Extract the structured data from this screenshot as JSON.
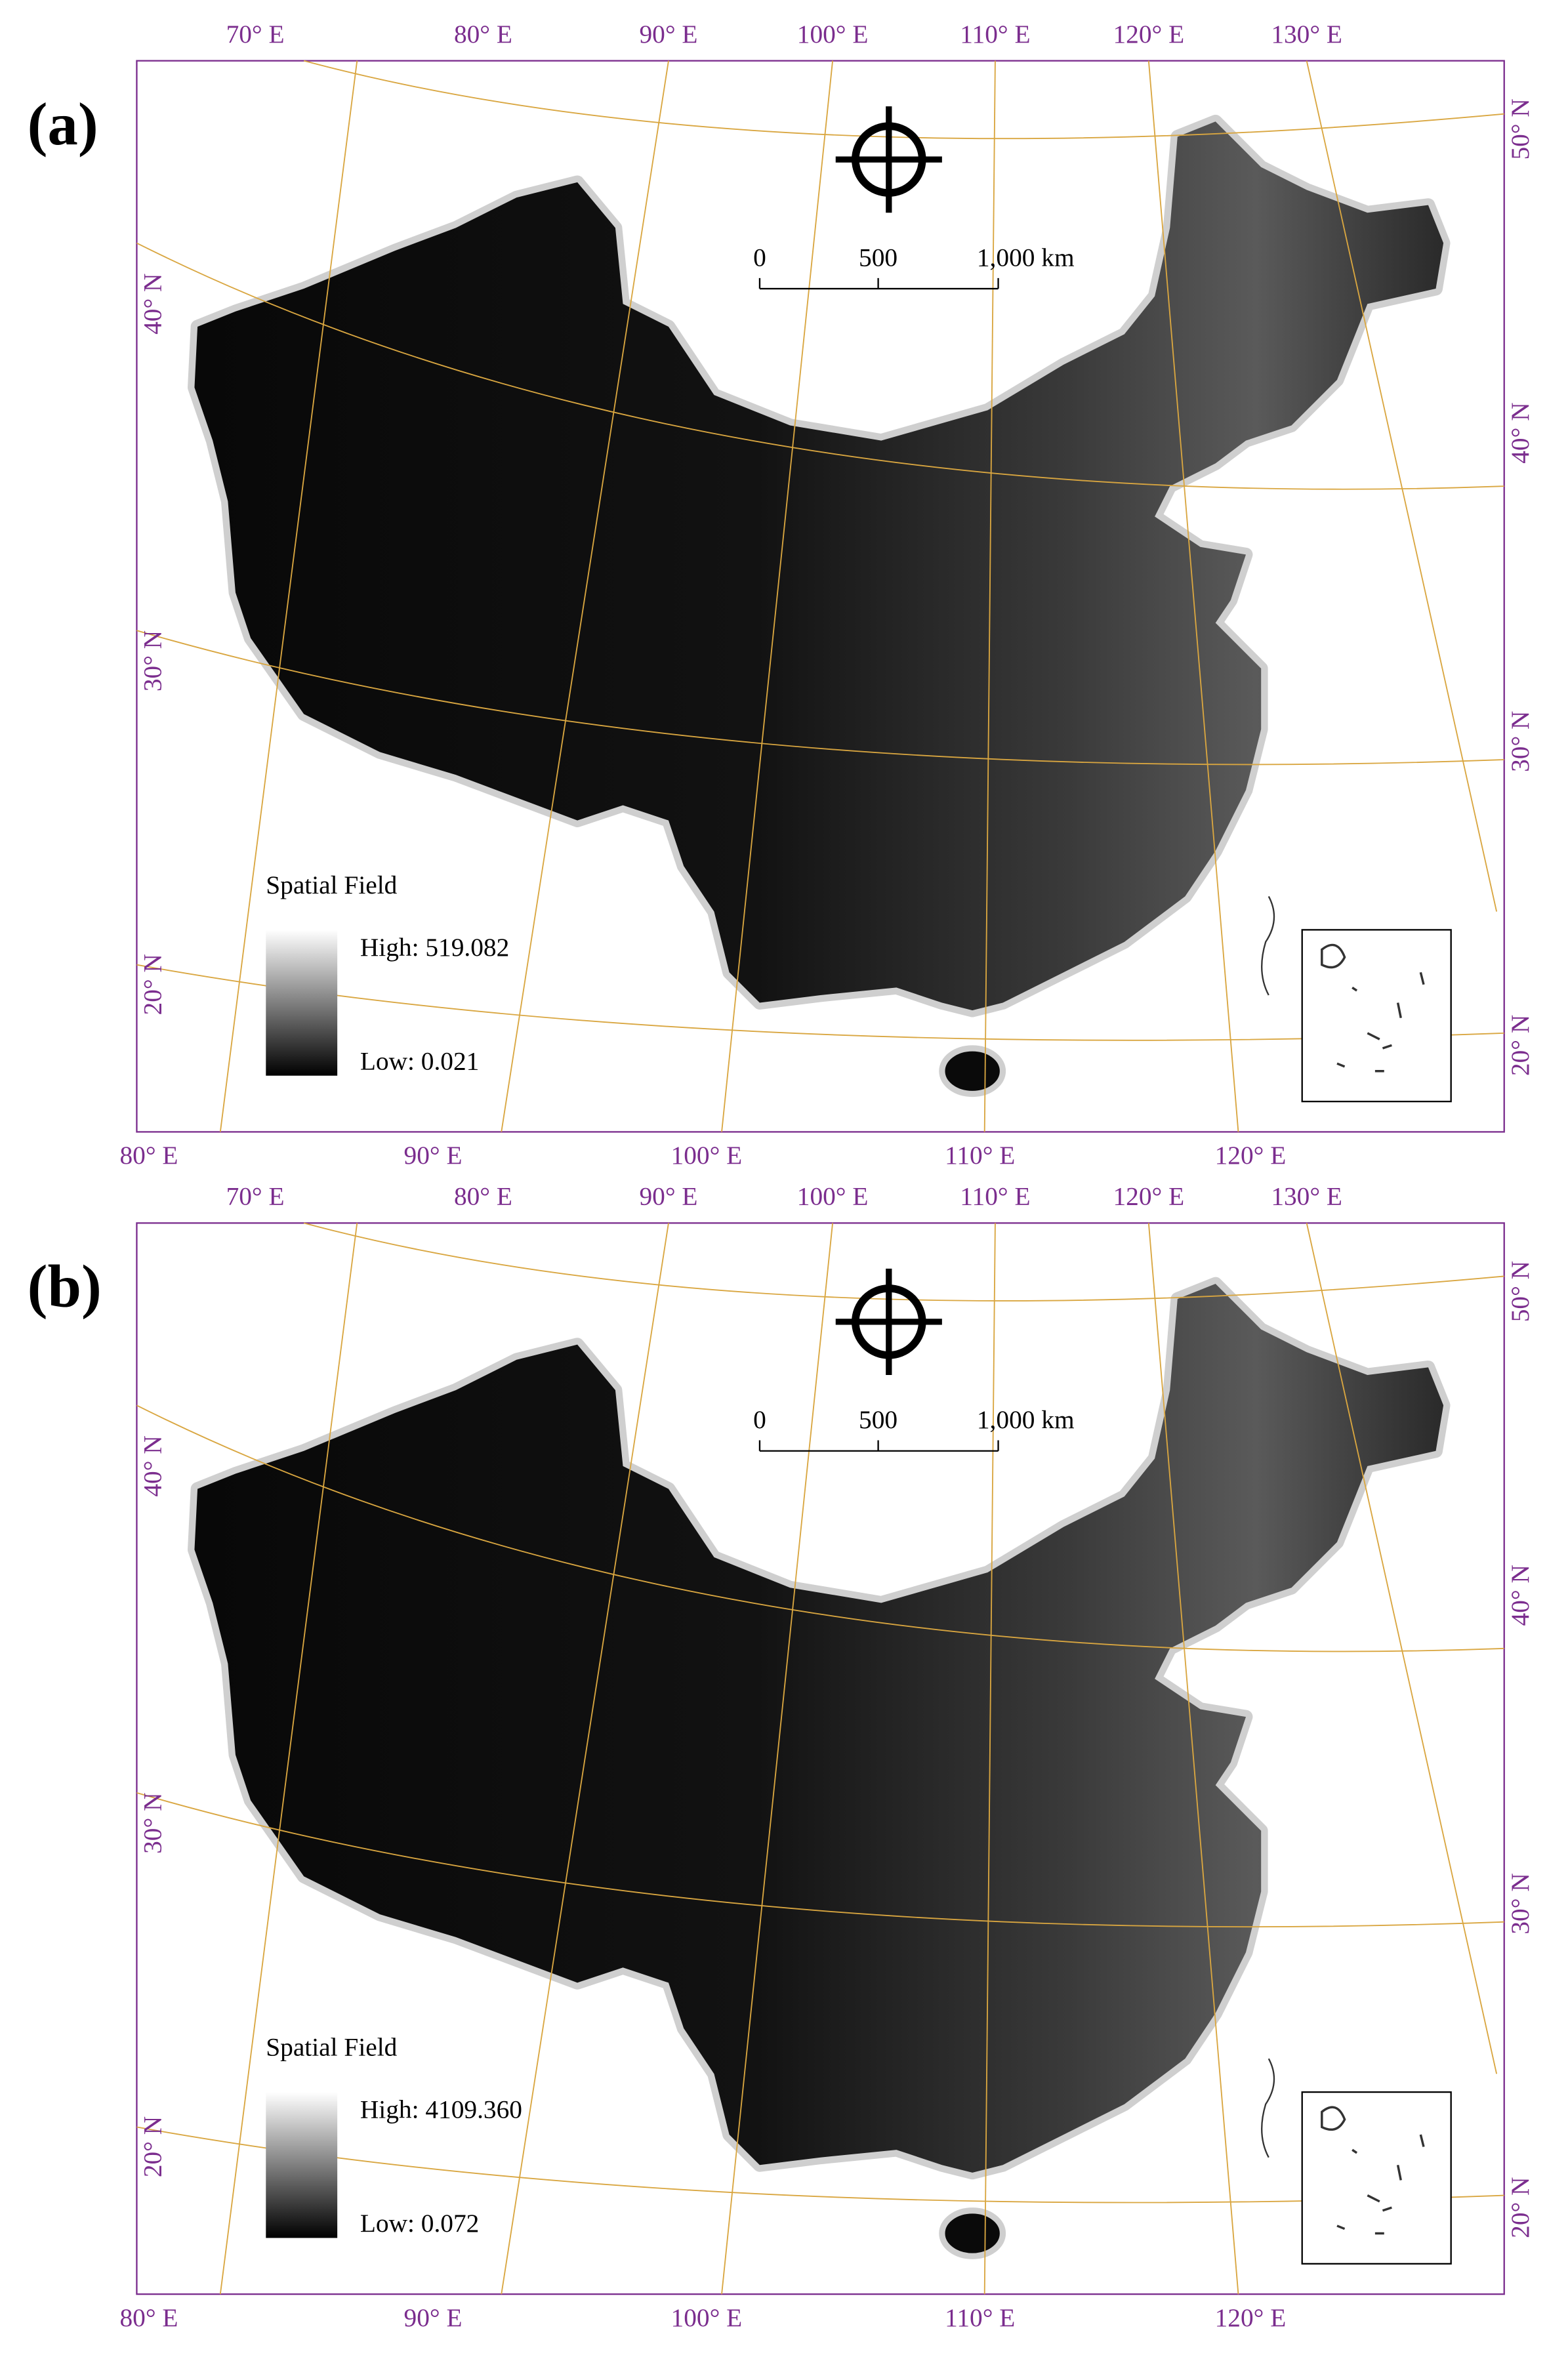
{
  "panels": [
    {
      "label": "(a)",
      "lon_top": [
        "70° E",
        "80° E",
        "90° E",
        "100° E",
        "110° E",
        "120° E",
        "130° E"
      ],
      "lon_bottom": [
        "80° E",
        "90° E",
        "100° E",
        "110° E",
        "120° E"
      ],
      "lat_left": [
        "40° N",
        "30° N",
        "20° N"
      ],
      "lat_right": [
        "50° N",
        "40° N",
        "30° N",
        "20° N"
      ],
      "scale_bar": [
        "0",
        "500",
        "1,000 km"
      ],
      "legend": {
        "title": "Spatial Field",
        "high": "High: 519.082",
        "low": "Low: 0.021"
      }
    },
    {
      "label": "(b)",
      "lon_top": [
        "70° E",
        "80° E",
        "90° E",
        "100° E",
        "110° E",
        "120° E",
        "130° E"
      ],
      "lon_bottom": [
        "80° E",
        "90° E",
        "100° E",
        "110° E",
        "120° E"
      ],
      "lat_left": [
        "40° N",
        "30° N",
        "20° N"
      ],
      "lat_right": [
        "50° N",
        "40° N",
        "30° N",
        "20° N"
      ],
      "scale_bar": [
        "0",
        "500",
        "1,000 km"
      ],
      "legend": {
        "title": "Spatial Field",
        "high": "High: 4109.360",
        "low": "Low: 0.072"
      }
    }
  ]
}
